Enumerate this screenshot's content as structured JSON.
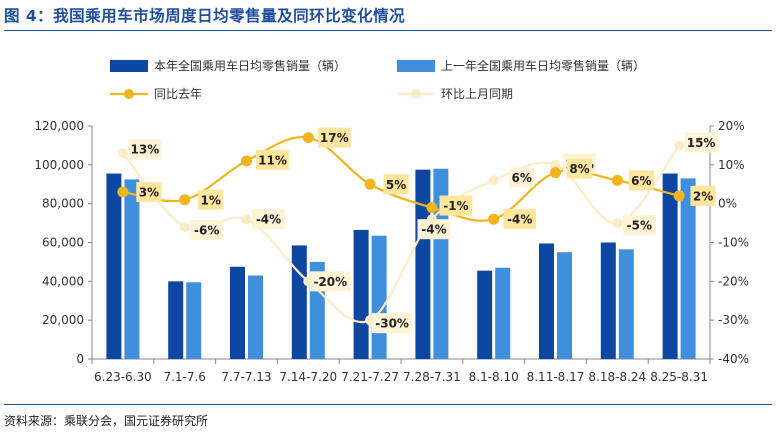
{
  "title": "图 4：我国乘用车市场周度日均零售量及同环比变化情况",
  "source": "资料来源：乘联分会，国元证券研究所",
  "colors": {
    "title": "#1f4e9c",
    "bar_current": "#0d47a1",
    "bar_prior": "#3f8fdc",
    "yoy_line": "#f2b41e",
    "yoy_label_bg": "#ffe59e",
    "mom_line": "#fdebc6",
    "mom_label_bg": "#fff3d6"
  },
  "chart_data": {
    "type": "bar",
    "categories": [
      "6.23-6.30",
      "7.1-7.6",
      "7.7-7.13",
      "7.14-7.20",
      "7.21-7.27",
      "7.28-7.31",
      "8.1-8.10",
      "8.11-8.17",
      "8.18-8.24",
      "8.25-8.31"
    ],
    "series": [
      {
        "name": "本年全国乘用车日均零售销量（辆）",
        "kind": "bar",
        "axis": "left",
        "values": [
          95500,
          40000,
          47500,
          58500,
          66500,
          97500,
          45500,
          59500,
          60000,
          95500
        ]
      },
      {
        "name": "上一年全国乘用车日均零售销量（辆）",
        "kind": "bar",
        "axis": "left",
        "values": [
          92500,
          39500,
          43000,
          50000,
          63500,
          98000,
          47000,
          55000,
          56500,
          93000
        ]
      },
      {
        "name": "同比去年",
        "kind": "line",
        "axis": "right",
        "values": [
          3,
          1,
          11,
          17,
          5,
          -1,
          -4,
          8,
          6,
          2
        ],
        "labels": [
          "3%",
          "1%",
          "11%",
          "17%",
          "5%",
          "-1%",
          "-4%",
          "8%",
          "6%",
          "2%"
        ]
      },
      {
        "name": "环比上月同期",
        "kind": "line",
        "axis": "right",
        "values": [
          13,
          -6,
          -4,
          -20,
          -30,
          -4,
          6,
          10,
          -5,
          15
        ],
        "labels": [
          "13%",
          "-6%",
          "-4%",
          "-20%",
          "-30%",
          "-4%",
          "6%",
          "10%",
          "-5%",
          "15%"
        ]
      }
    ],
    "y_left": {
      "lim": [
        0,
        120000
      ],
      "ticks": [
        "0",
        "20,000",
        "40,000",
        "60,000",
        "80,000",
        "100,000",
        "120,000"
      ]
    },
    "y_right": {
      "lim": [
        -40,
        20
      ],
      "ticks": [
        "-40%",
        "-30%",
        "-20%",
        "-10%",
        "0%",
        "10%",
        "20%"
      ]
    },
    "legend_position": "top"
  }
}
